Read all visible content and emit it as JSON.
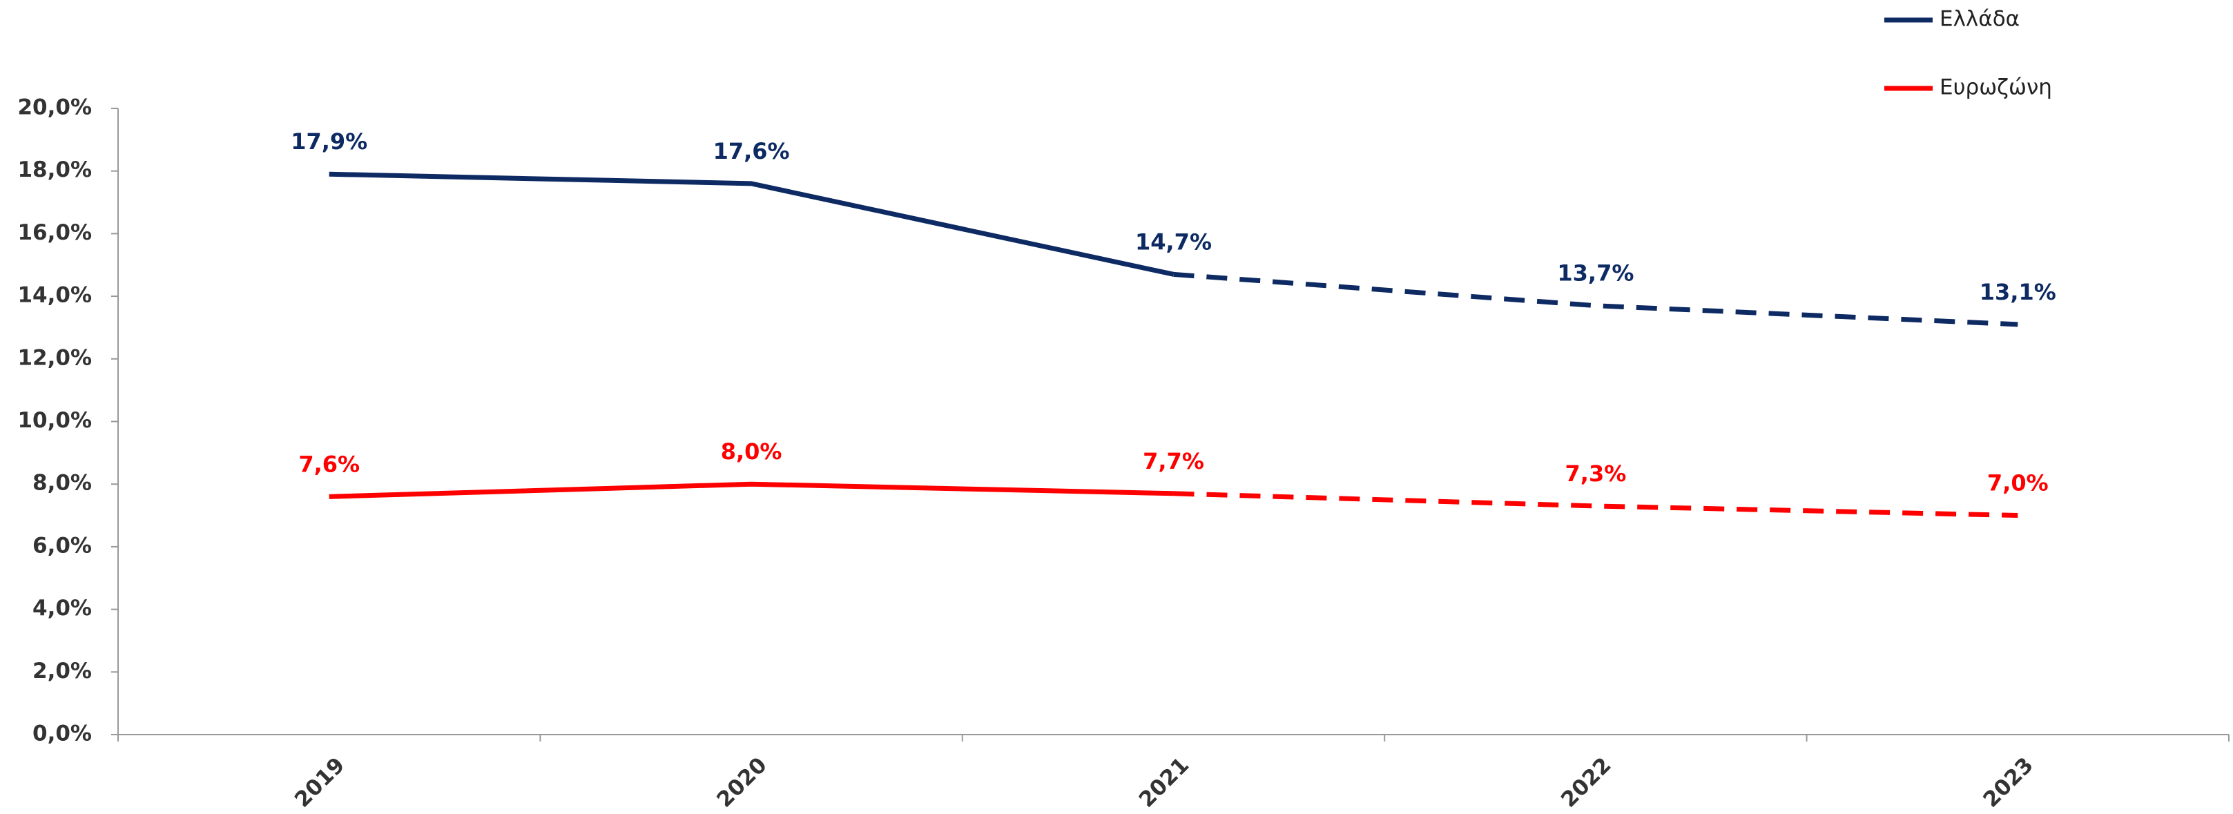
{
  "chart_data": {
    "type": "line",
    "categories": [
      "2019",
      "2020",
      "2021",
      "2022",
      "2023"
    ],
    "series": [
      {
        "name": "Ελλάδα",
        "color": "#0d2a63",
        "values": [
          17.9,
          17.6,
          14.7,
          13.7,
          13.1
        ],
        "value_labels": [
          "17,9%",
          "17,6%",
          "14,7%",
          "13,7%",
          "13,1%"
        ]
      },
      {
        "name": "Ευρωζώνη",
        "color": "#ff0000",
        "values": [
          7.6,
          8.0,
          7.7,
          7.3,
          7.0
        ],
        "value_labels": [
          "7,6%",
          "8,0%",
          "7,7%",
          "7,3%",
          "7,0%"
        ]
      }
    ],
    "dashed_from_index": 2,
    "ylim": [
      0,
      20
    ],
    "yticks": [
      {
        "value": 0,
        "label": "0,0%"
      },
      {
        "value": 2,
        "label": "2,0%"
      },
      {
        "value": 4,
        "label": "4,0%"
      },
      {
        "value": 6,
        "label": "6,0%"
      },
      {
        "value": 8,
        "label": "8,0%"
      },
      {
        "value": 10,
        "label": "10,0%"
      },
      {
        "value": 12,
        "label": "12,0%"
      },
      {
        "value": 14,
        "label": "14,0%"
      },
      {
        "value": 16,
        "label": "16,0%"
      },
      {
        "value": 18,
        "label": "18,0%"
      },
      {
        "value": 20,
        "label": "20,0%"
      }
    ],
    "grid": false,
    "legend": "top-right"
  }
}
